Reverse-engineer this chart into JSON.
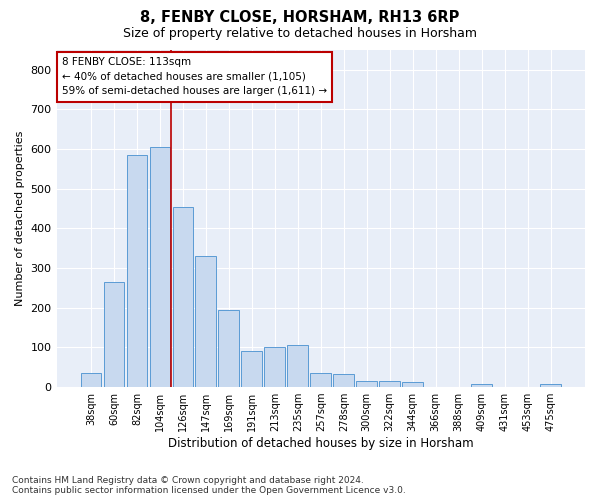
{
  "title": "8, FENBY CLOSE, HORSHAM, RH13 6RP",
  "subtitle": "Size of property relative to detached houses in Horsham",
  "xlabel": "Distribution of detached houses by size in Horsham",
  "ylabel": "Number of detached properties",
  "categories": [
    "38sqm",
    "60sqm",
    "82sqm",
    "104sqm",
    "126sqm",
    "147sqm",
    "169sqm",
    "191sqm",
    "213sqm",
    "235sqm",
    "257sqm",
    "278sqm",
    "300sqm",
    "322sqm",
    "344sqm",
    "366sqm",
    "388sqm",
    "409sqm",
    "431sqm",
    "453sqm",
    "475sqm"
  ],
  "values": [
    35,
    265,
    585,
    605,
    455,
    330,
    195,
    90,
    100,
    105,
    35,
    32,
    15,
    15,
    12,
    0,
    0,
    7,
    0,
    0,
    7
  ],
  "bar_color": "#c8d9ef",
  "bar_edge_color": "#5b9bd5",
  "vline_x": 3.5,
  "vline_color": "#bb0000",
  "annotation_title": "8 FENBY CLOSE: 113sqm",
  "annotation_line1": "← 40% of detached houses are smaller (1,105)",
  "annotation_line2": "59% of semi-detached houses are larger (1,611) →",
  "annotation_box_color": "#bb0000",
  "ylim": [
    0,
    850
  ],
  "yticks": [
    0,
    100,
    200,
    300,
    400,
    500,
    600,
    700,
    800
  ],
  "footer_line1": "Contains HM Land Registry data © Crown copyright and database right 2024.",
  "footer_line2": "Contains public sector information licensed under the Open Government Licence v3.0.",
  "plot_bg_color": "#e8eef8"
}
